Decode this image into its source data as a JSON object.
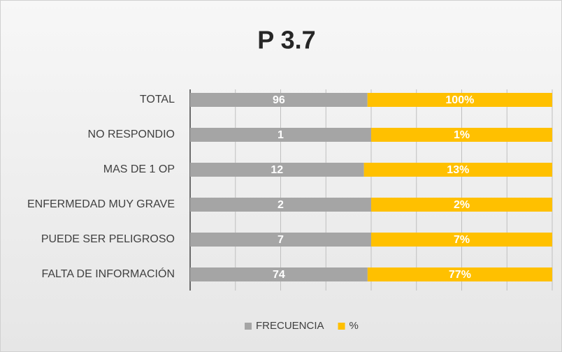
{
  "chart_data": {
    "type": "stacked_bar_100",
    "title": "P 3.7",
    "categories": [
      "TOTAL",
      "NO RESPONDIO",
      "MAS DE 1 OP",
      "ENFERMEDAD MUY GRAVE",
      "PUEDE SER PELIGROSO",
      "FALTA DE INFORMACIÓN"
    ],
    "series": [
      {
        "name": "FRECUENCIA",
        "color": "#a5a5a5",
        "values": [
          96,
          1,
          12,
          2,
          7,
          74
        ]
      },
      {
        "name": "%",
        "color": "#ffc000",
        "values": [
          100,
          1,
          13,
          2,
          7,
          77
        ],
        "value_labels": [
          "100%",
          "1%",
          "13%",
          "2%",
          "7%",
          "77%"
        ]
      }
    ],
    "xlim": [
      0,
      100
    ],
    "xticks": [
      0,
      12.5,
      25,
      37.5,
      50,
      62.5,
      75,
      87.5,
      100
    ],
    "tick_labels": false,
    "grid": true,
    "legend": "bottom"
  }
}
